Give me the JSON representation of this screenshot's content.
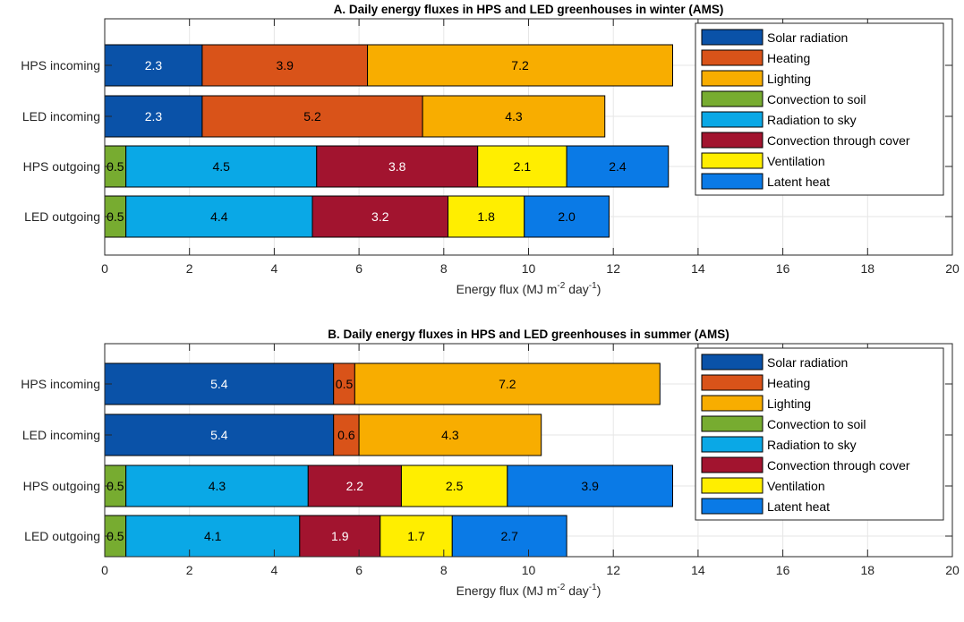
{
  "chart_data": [
    {
      "type": "bar",
      "orientation": "horizontal",
      "stacked": true,
      "title": "A. Daily energy fluxes in HPS and LED greenhouses in winter (AMS)",
      "xlabel": "Energy flux (MJ m",
      "xlabel_sup1": "-2",
      "xlabel_mid": " day",
      "xlabel_sup2": "-1",
      "xlabel_end": ")",
      "xlim": [
        0,
        20
      ],
      "xticks": [
        0,
        2,
        4,
        6,
        8,
        10,
        12,
        14,
        16,
        18,
        20
      ],
      "grid": true,
      "legend_position": "top-right",
      "categories": [
        "HPS incoming",
        "LED incoming",
        "HPS outgoing",
        "LED outgoing"
      ],
      "legend": [
        {
          "name": "Solar radiation",
          "color": "#0a52a8"
        },
        {
          "name": "Heating",
          "color": "#d95319"
        },
        {
          "name": "Lighting",
          "color": "#f8ad00"
        },
        {
          "name": "Convection to soil",
          "color": "#77ac30"
        },
        {
          "name": "Radiation to sky",
          "color": "#0aa8e6"
        },
        {
          "name": "Convection through cover",
          "color": "#a2142f"
        },
        {
          "name": "Ventilation",
          "color": "#ffee00"
        },
        {
          "name": "Latent heat",
          "color": "#0a7ae6"
        }
      ],
      "bars": [
        {
          "category": "HPS incoming",
          "segments": [
            {
              "series": "Solar radiation",
              "value": 2.3,
              "label": "2.3"
            },
            {
              "series": "Heating",
              "value": 3.9,
              "label": "3.9"
            },
            {
              "series": "Lighting",
              "value": 7.2,
              "label": "7.2"
            }
          ]
        },
        {
          "category": "LED incoming",
          "segments": [
            {
              "series": "Solar radiation",
              "value": 2.3,
              "label": "2.3"
            },
            {
              "series": "Heating",
              "value": 5.2,
              "label": "5.2"
            },
            {
              "series": "Lighting",
              "value": 4.3,
              "label": "4.3"
            }
          ]
        },
        {
          "category": "HPS outgoing",
          "segments": [
            {
              "series": "Convection to soil",
              "value": 0.5,
              "label": "0.5"
            },
            {
              "series": "Radiation to sky",
              "value": 4.5,
              "label": "4.5"
            },
            {
              "series": "Convection through cover",
              "value": 3.8,
              "label": "3.8"
            },
            {
              "series": "Ventilation",
              "value": 2.1,
              "label": "2.1"
            },
            {
              "series": "Latent heat",
              "value": 2.4,
              "label": "2.4"
            }
          ]
        },
        {
          "category": "LED outgoing",
          "segments": [
            {
              "series": "Convection to soil",
              "value": 0.5,
              "label": "0.5"
            },
            {
              "series": "Radiation to sky",
              "value": 4.4,
              "label": "4.4"
            },
            {
              "series": "Convection through cover",
              "value": 3.2,
              "label": "3.2"
            },
            {
              "series": "Ventilation",
              "value": 1.8,
              "label": "1.8"
            },
            {
              "series": "Latent heat",
              "value": 2.0,
              "label": "2.0"
            }
          ]
        }
      ]
    },
    {
      "type": "bar",
      "orientation": "horizontal",
      "stacked": true,
      "title": "B. Daily energy fluxes in HPS and LED greenhouses in summer (AMS)",
      "xlabel": "Energy flux (MJ m",
      "xlabel_sup1": "-2",
      "xlabel_mid": " day",
      "xlabel_sup2": "-1",
      "xlabel_end": ")",
      "xlim": [
        0,
        20
      ],
      "xticks": [
        0,
        2,
        4,
        6,
        8,
        10,
        12,
        14,
        16,
        18,
        20
      ],
      "grid": true,
      "legend_position": "top-right",
      "categories": [
        "HPS incoming",
        "LED incoming",
        "HPS outgoing",
        "LED outgoing"
      ],
      "legend": [
        {
          "name": "Solar radiation",
          "color": "#0a52a8"
        },
        {
          "name": "Heating",
          "color": "#d95319"
        },
        {
          "name": "Lighting",
          "color": "#f8ad00"
        },
        {
          "name": "Convection to soil",
          "color": "#77ac30"
        },
        {
          "name": "Radiation to sky",
          "color": "#0aa8e6"
        },
        {
          "name": "Convection through cover",
          "color": "#a2142f"
        },
        {
          "name": "Ventilation",
          "color": "#ffee00"
        },
        {
          "name": "Latent heat",
          "color": "#0a7ae6"
        }
      ],
      "bars": [
        {
          "category": "HPS incoming",
          "segments": [
            {
              "series": "Solar radiation",
              "value": 5.4,
              "label": "5.4"
            },
            {
              "series": "Heating",
              "value": 0.5,
              "label": "0.5"
            },
            {
              "series": "Lighting",
              "value": 7.2,
              "label": "7.2"
            }
          ]
        },
        {
          "category": "LED incoming",
          "segments": [
            {
              "series": "Solar radiation",
              "value": 5.4,
              "label": "5.4"
            },
            {
              "series": "Heating",
              "value": 0.6,
              "label": "0.6"
            },
            {
              "series": "Lighting",
              "value": 4.3,
              "label": "4.3"
            }
          ]
        },
        {
          "category": "HPS outgoing",
          "segments": [
            {
              "series": "Convection to soil",
              "value": 0.5,
              "label": "0.5"
            },
            {
              "series": "Radiation to sky",
              "value": 4.3,
              "label": "4.3"
            },
            {
              "series": "Convection through cover",
              "value": 2.2,
              "label": "2.2"
            },
            {
              "series": "Ventilation",
              "value": 2.5,
              "label": "2.5"
            },
            {
              "series": "Latent heat",
              "value": 3.9,
              "label": "3.9"
            }
          ]
        },
        {
          "category": "LED outgoing",
          "segments": [
            {
              "series": "Convection to soil",
              "value": 0.5,
              "label": "0.5"
            },
            {
              "series": "Radiation to sky",
              "value": 4.1,
              "label": "4.1"
            },
            {
              "series": "Convection through cover",
              "value": 1.9,
              "label": "1.9"
            },
            {
              "series": "Ventilation",
              "value": 1.7,
              "label": "1.7"
            },
            {
              "series": "Latent heat",
              "value": 2.7,
              "label": "2.7"
            }
          ]
        }
      ]
    }
  ]
}
